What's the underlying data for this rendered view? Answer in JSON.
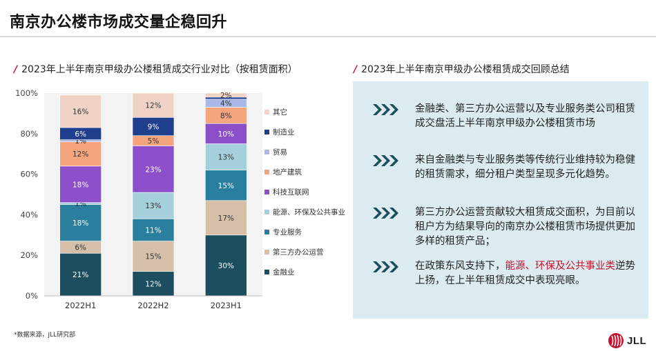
{
  "page": {
    "title": "南京办公楼市场成交量企稳回升",
    "footnote": "*数据来源，JLL研究部",
    "logo_text": "JLL",
    "accent_color": "#c8102e"
  },
  "left_section": {
    "heading": "2023年上半年南京甲级办公楼租赁成交行业对比（按租赁面积）"
  },
  "right_section": {
    "heading": "2023年上半年南京甲级办公楼租赁成交回顾总结",
    "bullets": [
      {
        "icon": "triple-chevron-icon",
        "text": "金融类、第三方办公运营以及专业服务类公司租赁成交盘活上半年南京甲级办公楼租赁市场"
      },
      {
        "icon": "triple-chevron-icon",
        "text": "来自金融类与专业服务类等传统行业维持较为稳健的租赁需求，细分租户类型呈现多元化趋势。"
      },
      {
        "icon": "triple-chevron-icon",
        "text": "第三方办公运营贡献较大租赁成交面积，为目前以租户方为结果导向的南京办公楼租赁市场提供更加多样的租赁产品；"
      },
      {
        "icon": "triple-chevron-icon",
        "text_before": "在政策东风支持下，",
        "text_highlight": "能源、环保及公共事业类",
        "text_after": "逆势上扬，在上半年租赁成交中表现亮眼。"
      }
    ]
  },
  "chart_data": {
    "type": "bar",
    "stacked": true,
    "title": "2023年上半年南京甲级办公楼租赁成交行业对比（按租赁面积）",
    "categories": [
      "2022H1",
      "2022H2",
      "2023H1"
    ],
    "ylim": [
      0,
      100
    ],
    "yticks": [
      "0%",
      "20%",
      "40%",
      "60%",
      "80%",
      "100%"
    ],
    "ytick_values": [
      0,
      20,
      40,
      60,
      80,
      100
    ],
    "legend_position": "right",
    "series": [
      {
        "name": "金融业",
        "color": "#1d4e5f",
        "label_color": "#ffffff",
        "values": [
          21,
          12,
          30
        ]
      },
      {
        "name": "第三方办公运营",
        "color": "#d6bfa9",
        "label_color": "#333333",
        "values": [
          6,
          15,
          17
        ]
      },
      {
        "name": "专业服务",
        "color": "#2a7f9e",
        "label_color": "#ffffff",
        "values": [
          18,
          11,
          15
        ]
      },
      {
        "name": "能源、环保及公共事业",
        "color": "#a6cfdc",
        "label_color": "#333333",
        "values": [
          1,
          13,
          13
        ]
      },
      {
        "name": "科技互联网",
        "color": "#8c4fc9",
        "label_color": "#ffffff",
        "values": [
          18,
          23,
          10
        ]
      },
      {
        "name": "地产建筑",
        "color": "#f5a57e",
        "label_color": "#333333",
        "values": [
          12,
          5,
          8
        ]
      },
      {
        "name": "贸易",
        "color": "#a9b8e6",
        "label_color": "#333333",
        "values": [
          1,
          0,
          4
        ]
      },
      {
        "name": "制造业",
        "color": "#1f3f8c",
        "label_color": "#ffffff",
        "values": [
          6,
          9,
          1
        ]
      },
      {
        "name": "其它",
        "color": "#f1d3c6",
        "label_color": "#333333",
        "values": [
          16,
          12,
          2
        ]
      }
    ],
    "data_labels": [
      [
        "21%",
        "12%",
        "30%"
      ],
      [
        "6%",
        "15%",
        "17%"
      ],
      [
        "18%",
        "11%",
        "15%"
      ],
      [
        "1%",
        "13%",
        "13%"
      ],
      [
        "18%",
        "23%",
        "10%"
      ],
      [
        "12%",
        "5%",
        "8%"
      ],
      [
        "1%",
        "",
        "4%"
      ],
      [
        "6%",
        "9%",
        ""
      ],
      [
        "16%",
        "12%",
        "2%"
      ]
    ]
  }
}
